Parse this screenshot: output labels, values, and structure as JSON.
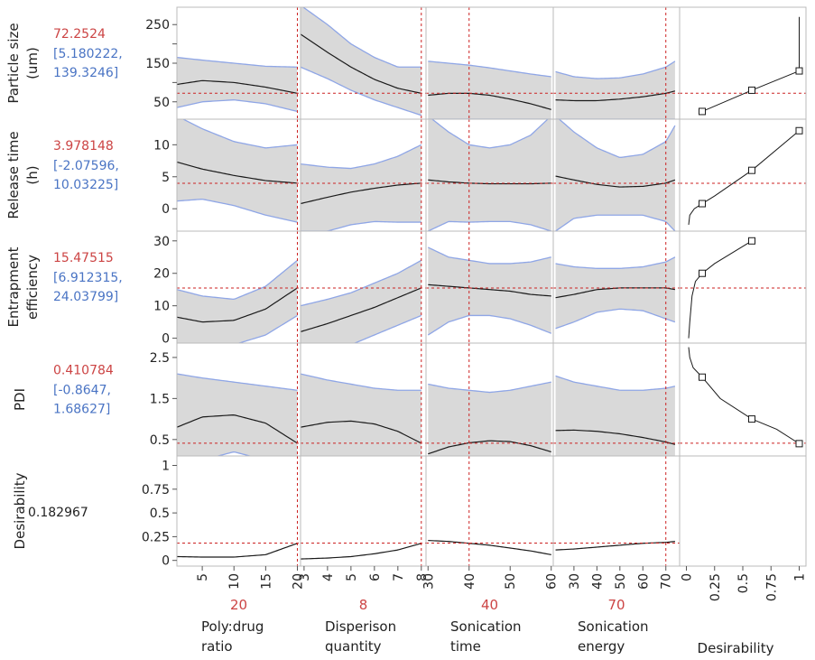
{
  "colors": {
    "current_value": "#cc4444",
    "interval": "#4a74c4",
    "band_fill": "#d9d9d9",
    "band_edge": "#8fa6e6",
    "ref_line": "#cc2222",
    "curve": "#1a1a1a",
    "frame": "#bbbbbb",
    "text": "#222222"
  },
  "chart_data": {
    "type": "prediction_profiler",
    "factors": [
      {
        "name_lines": [
          "Poly:drug",
          "ratio"
        ],
        "current": "20",
        "current_x": 20,
        "range": [
          1,
          20.5
        ],
        "ticks": [
          5,
          10,
          15,
          20
        ],
        "tick_labels": [
          "5",
          "10",
          "15",
          "20"
        ]
      },
      {
        "name_lines": [
          "Disperison",
          "quantity"
        ],
        "current": "8",
        "current_x": 8,
        "range": [
          2.85,
          8.2
        ],
        "ticks": [
          3,
          4,
          5,
          6,
          7,
          8
        ],
        "tick_labels": [
          "3",
          "4",
          "5",
          "6",
          "7",
          "8"
        ]
      },
      {
        "name_lines": [
          "Sonication",
          "time"
        ],
        "current": "40",
        "current_x": 40,
        "range": [
          29.5,
          60.5
        ],
        "ticks": [
          30,
          40,
          50,
          60
        ],
        "tick_labels": [
          "30",
          "40",
          "50",
          "60"
        ]
      },
      {
        "name_lines": [
          "Sonication",
          "energy"
        ],
        "current": "70",
        "current_x": 70,
        "range": [
          21,
          76
        ],
        "ticks": [
          30,
          40,
          50,
          60,
          70
        ],
        "tick_labels": [
          "30",
          "40",
          "50",
          "60",
          "70"
        ]
      }
    ],
    "desirability_axis": {
      "label": "Desirability",
      "range": [
        -0.06,
        1.06
      ],
      "ticks": [
        0,
        0.25,
        0.5,
        0.75,
        1
      ],
      "tick_labels": [
        "0",
        "0.25",
        "0.5",
        "0.75",
        "1"
      ]
    },
    "responses": [
      {
        "name_lines": [
          "Particle size",
          "(um)"
        ],
        "predicted": "72.2524",
        "interval_lines": [
          "[5.180222,",
          "139.3246]"
        ],
        "predicted_y": 72.2524,
        "yrange": [
          5,
          295
        ],
        "ticks": [
          50,
          100,
          150,
          200,
          250
        ],
        "tick_labels": [
          "50",
          "",
          "150",
          "",
          "250"
        ],
        "curves": [
          {
            "x": [
              1,
              5,
              10,
              15,
              20
            ],
            "y": [
              95,
              105,
              100,
              88,
              72
            ],
            "lo": [
              35,
              50,
              55,
              45,
              25
            ],
            "hi": [
              165,
              158,
              150,
              142,
              140
            ]
          },
          {
            "x": [
              2.85,
              4,
              5,
              6,
              7,
              8
            ],
            "y": [
              225,
              178,
              140,
              108,
              85,
              72
            ],
            "lo": [
              140,
              110,
              80,
              55,
              35,
              15
            ],
            "hi": [
              300,
              250,
              200,
              165,
              140,
              140
            ]
          },
          {
            "x": [
              30,
              35,
              40,
              45,
              50,
              55,
              60
            ],
            "y": [
              67,
              72,
              72,
              67,
              57,
              45,
              30
            ],
            "lo": [
              5,
              5,
              5,
              5,
              5,
              5,
              5
            ],
            "hi": [
              155,
              150,
              145,
              138,
              130,
              122,
              115
            ]
          },
          {
            "x": [
              22,
              30,
              40,
              50,
              60,
              70,
              74
            ],
            "y": [
              55,
              53,
              53,
              57,
              63,
              72,
              78
            ],
            "lo": [
              5,
              5,
              5,
              5,
              5,
              5,
              5
            ],
            "hi": [
              128,
              115,
              110,
              112,
              122,
              140,
              155
            ]
          }
        ],
        "desirability": {
          "x": [
            0.14,
            0.58,
            1.0,
            1.0
          ],
          "y": [
            25,
            80,
            130,
            270
          ],
          "squares": [
            [
              0.14,
              25
            ],
            [
              0.58,
              80
            ],
            [
              1.0,
              130
            ]
          ]
        }
      },
      {
        "name_lines": [
          "Release time",
          "(h)"
        ],
        "predicted": "3.978148",
        "interval_lines": [
          "[-2.07596,",
          "10.03225]"
        ],
        "predicted_y": 3.978148,
        "yrange": [
          -3.5,
          14
        ],
        "ticks": [
          0,
          5,
          10
        ],
        "tick_labels": [
          "0",
          "5",
          "10"
        ],
        "curves": [
          {
            "x": [
              1,
              5,
              10,
              15,
              20
            ],
            "y": [
              7.3,
              6.2,
              5.2,
              4.4,
              4.0
            ],
            "lo": [
              1.2,
              1.5,
              0.5,
              -1.0,
              -2.1
            ],
            "hi": [
              14.5,
              12.5,
              10.5,
              9.5,
              10.0
            ]
          },
          {
            "x": [
              2.85,
              4,
              5,
              6,
              7,
              8
            ],
            "y": [
              0.8,
              1.8,
              2.6,
              3.2,
              3.7,
              4.0
            ],
            "lo": [
              -3.5,
              -3.5,
              -2.5,
              -2.0,
              -2.1,
              -2.1
            ],
            "hi": [
              7.0,
              6.5,
              6.3,
              7.0,
              8.2,
              10.0
            ]
          },
          {
            "x": [
              30,
              35,
              40,
              45,
              50,
              55,
              60
            ],
            "y": [
              4.5,
              4.2,
              4.0,
              3.9,
              3.9,
              3.9,
              4.0
            ],
            "lo": [
              -3.5,
              -2.0,
              -2.1,
              -2.0,
              -2.0,
              -2.5,
              -3.5
            ],
            "hi": [
              14.5,
              12.0,
              10.0,
              9.5,
              10.0,
              11.5,
              14.5
            ]
          },
          {
            "x": [
              22,
              30,
              40,
              50,
              60,
              70,
              74
            ],
            "y": [
              5.1,
              4.5,
              3.8,
              3.4,
              3.5,
              4.0,
              4.5
            ],
            "lo": [
              -3.5,
              -1.5,
              -1.0,
              -1.0,
              -1.0,
              -2.0,
              -3.5
            ],
            "hi": [
              14.5,
              12.0,
              9.5,
              8.0,
              8.5,
              10.5,
              13.0
            ]
          }
        ],
        "desirability": {
          "x": [
            0.02,
            0.03,
            0.07,
            0.14,
            0.25,
            0.58,
            1.0
          ],
          "y": [
            -2.5,
            -1.0,
            0.0,
            0.8,
            2.0,
            6.0,
            12.2
          ],
          "squares": [
            [
              0.14,
              0.8
            ],
            [
              0.58,
              6.0
            ],
            [
              1.0,
              12.2
            ]
          ]
        }
      },
      {
        "name_lines": [
          "Entrapment",
          "efficiency"
        ],
        "predicted": "15.47515",
        "interval_lines": [
          "[6.912315,",
          "24.03799]"
        ],
        "predicted_y": 15.47515,
        "yrange": [
          -1.5,
          33
        ],
        "ticks": [
          0,
          10,
          20,
          30
        ],
        "tick_labels": [
          "0",
          "10",
          "20",
          "30"
        ],
        "curves": [
          {
            "x": [
              1,
              5,
              10,
              15,
              20
            ],
            "y": [
              6.5,
              5.0,
              5.5,
              9.0,
              15.5
            ],
            "lo": [
              -2,
              -2,
              -2,
              1,
              7
            ],
            "hi": [
              15,
              13,
              12,
              16,
              24
            ]
          },
          {
            "x": [
              2.85,
              4,
              5,
              6,
              7,
              8
            ],
            "y": [
              2.0,
              4.5,
              7.0,
              9.5,
              12.5,
              15.5
            ],
            "lo": [
              -2,
              -2,
              -2,
              1,
              4,
              7
            ],
            "hi": [
              10,
              12,
              14,
              17,
              20,
              24
            ]
          },
          {
            "x": [
              30,
              35,
              40,
              45,
              50,
              55,
              60
            ],
            "y": [
              16.5,
              16.0,
              15.5,
              15.0,
              14.5,
              13.5,
              13.0
            ],
            "lo": [
              1.0,
              5.0,
              7.0,
              7.0,
              6.0,
              4.0,
              1.5
            ],
            "hi": [
              28.0,
              25.0,
              24.0,
              23.0,
              23.0,
              23.5,
              25.0
            ]
          },
          {
            "x": [
              22,
              30,
              40,
              50,
              60,
              70,
              74
            ],
            "y": [
              12.5,
              13.5,
              15.0,
              15.5,
              15.5,
              15.5,
              15.0
            ],
            "lo": [
              3.0,
              5.0,
              8.0,
              9.0,
              8.5,
              6.0,
              5.0
            ],
            "hi": [
              23.0,
              22.0,
              21.5,
              21.5,
              22.0,
              23.5,
              25.0
            ]
          }
        ],
        "desirability": {
          "x": [
            0.02,
            0.03,
            0.05,
            0.08,
            0.14,
            0.25,
            0.58
          ],
          "y": [
            0.0,
            5.0,
            13.0,
            17.5,
            20.0,
            23.0,
            30.0
          ],
          "squares": [
            [
              0.14,
              20.0
            ],
            [
              0.58,
              30.0
            ]
          ]
        }
      },
      {
        "name_lines": [
          "PDI"
        ],
        "predicted": "0.410784",
        "interval_lines": [
          "[-0.8647,",
          "1.68627]"
        ],
        "predicted_y": 0.410784,
        "yrange": [
          0.1,
          2.85
        ],
        "ticks": [
          0.5,
          1.5,
          2.5
        ],
        "tick_labels": [
          "0.5",
          "1.5",
          "2.5"
        ],
        "curves": [
          {
            "x": [
              1,
              5,
              10,
              15,
              20
            ],
            "y": [
              0.8,
              1.05,
              1.1,
              0.9,
              0.41
            ],
            "lo": [
              -0.5,
              0.0,
              0.2,
              0.0,
              -0.8
            ],
            "hi": [
              2.1,
              2.0,
              1.9,
              1.8,
              1.7
            ]
          },
          {
            "x": [
              2.85,
              4,
              5,
              6,
              7,
              8
            ],
            "y": [
              0.8,
              0.92,
              0.95,
              0.88,
              0.7,
              0.41
            ],
            "lo": [
              -0.5,
              -0.4,
              -0.5,
              -0.6,
              -0.7,
              -0.8
            ],
            "hi": [
              2.1,
              1.95,
              1.85,
              1.75,
              1.7,
              1.7
            ]
          },
          {
            "x": [
              30,
              35,
              40,
              45,
              50,
              55,
              60
            ],
            "y": [
              0.15,
              0.32,
              0.42,
              0.47,
              0.45,
              0.35,
              0.2
            ],
            "lo": [
              -0.8,
              -0.8,
              -0.8,
              -0.8,
              -0.8,
              -0.8,
              -0.8
            ],
            "hi": [
              1.85,
              1.75,
              1.7,
              1.65,
              1.7,
              1.8,
              1.9
            ]
          },
          {
            "x": [
              22,
              30,
              40,
              50,
              60,
              70,
              74
            ],
            "y": [
              0.72,
              0.73,
              0.7,
              0.64,
              0.55,
              0.44,
              0.38
            ],
            "lo": [
              -0.8,
              -0.8,
              -0.8,
              -0.8,
              -0.8,
              -0.8,
              -0.8
            ],
            "hi": [
              2.05,
              1.9,
              1.8,
              1.7,
              1.7,
              1.75,
              1.8
            ]
          }
        ],
        "desirability": {
          "x": [
            0.02,
            0.03,
            0.06,
            0.14,
            0.3,
            0.58,
            0.8,
            1.0
          ],
          "y": [
            2.75,
            2.5,
            2.25,
            2.02,
            1.5,
            1.0,
            0.75,
            0.4
          ],
          "squares": [
            [
              0.14,
              2.02
            ],
            [
              0.58,
              1.0
            ],
            [
              1.0,
              0.4
            ]
          ]
        }
      },
      {
        "name_lines": [
          "Desirability"
        ],
        "predicted": "0.182967",
        "interval_lines": [],
        "predicted_y": 0.182967,
        "yrange": [
          -0.06,
          1.1
        ],
        "ticks": [
          0,
          0.25,
          0.5,
          0.75,
          1
        ],
        "tick_labels": [
          "0",
          "0.25",
          "0.5",
          "0.75",
          "1"
        ],
        "curves": [
          {
            "x": [
              1,
              5,
              10,
              15,
              20
            ],
            "y": [
              0.04,
              0.035,
              0.035,
              0.06,
              0.18
            ]
          },
          {
            "x": [
              2.85,
              4,
              5,
              6,
              7,
              8
            ],
            "y": [
              0.015,
              0.025,
              0.04,
              0.07,
              0.11,
              0.18
            ]
          },
          {
            "x": [
              30,
              35,
              40,
              45,
              50,
              55,
              60
            ],
            "y": [
              0.21,
              0.2,
              0.18,
              0.16,
              0.13,
              0.1,
              0.06
            ]
          },
          {
            "x": [
              22,
              30,
              40,
              50,
              60,
              70,
              74
            ],
            "y": [
              0.11,
              0.12,
              0.14,
              0.16,
              0.18,
              0.19,
              0.2
            ]
          }
        ],
        "desirability": null
      }
    ]
  }
}
